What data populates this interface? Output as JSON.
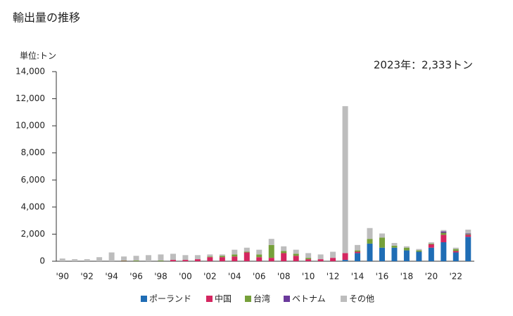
{
  "chart_data": {
    "type": "stacked-bar",
    "title": "輸出量の推移",
    "unit_label": "単位:トン",
    "annotation": "2023年：2,333トン",
    "categories": [
      "'90",
      null,
      "'92",
      null,
      "'94",
      null,
      "'96",
      null,
      "'98",
      null,
      "'00",
      null,
      "'02",
      null,
      "'04",
      null,
      "'06",
      null,
      "'08",
      null,
      "'10",
      null,
      "'12",
      null,
      "'14",
      null,
      "'16",
      null,
      "'18",
      null,
      "'20",
      null,
      "'22",
      null
    ],
    "series": [
      {
        "name": "ポーランド",
        "color": "#1f6db5",
        "values": [
          0,
          0,
          0,
          0,
          0,
          0,
          0,
          0,
          0,
          0,
          0,
          0,
          0,
          0,
          0,
          0,
          0,
          0,
          0,
          0,
          0,
          0,
          0,
          100,
          600,
          1300,
          1000,
          1000,
          800,
          700,
          1000,
          1400,
          650,
          1800
        ]
      },
      {
        "name": "中国",
        "color": "#d42660",
        "values": [
          0,
          0,
          0,
          0,
          0,
          20,
          0,
          0,
          0,
          100,
          100,
          150,
          300,
          300,
          350,
          650,
          300,
          250,
          600,
          400,
          150,
          150,
          250,
          500,
          100,
          0,
          0,
          0,
          0,
          0,
          250,
          550,
          100,
          150
        ]
      },
      {
        "name": "台湾",
        "color": "#76a03a",
        "values": [
          0,
          0,
          0,
          0,
          0,
          30,
          50,
          0,
          50,
          0,
          0,
          0,
          50,
          100,
          150,
          50,
          200,
          950,
          150,
          150,
          100,
          0,
          0,
          0,
          100,
          350,
          750,
          150,
          200,
          100,
          50,
          150,
          150,
          50
        ]
      },
      {
        "name": "ベトナム",
        "color": "#6b3a9c",
        "values": [
          0,
          0,
          0,
          0,
          0,
          0,
          0,
          0,
          0,
          0,
          0,
          0,
          0,
          0,
          0,
          0,
          0,
          0,
          0,
          0,
          0,
          0,
          0,
          0,
          0,
          0,
          0,
          0,
          0,
          0,
          0,
          100,
          0,
          50
        ]
      },
      {
        "name": "その他",
        "color": "#bdbdbd",
        "values": [
          200,
          150,
          150,
          300,
          650,
          300,
          350,
          450,
          450,
          450,
          350,
          300,
          150,
          100,
          350,
          300,
          350,
          450,
          350,
          300,
          350,
          350,
          450,
          10850,
          400,
          800,
          300,
          200,
          100,
          100,
          100,
          100,
          100,
          283
        ]
      }
    ],
    "ylim": [
      0,
      14000
    ],
    "yticks": [
      0,
      {
        "value": 2000,
        "label": "2,000"
      },
      {
        "value": 4000,
        "label": "4,000"
      },
      {
        "value": 6000,
        "label": "6,000"
      },
      {
        "value": 8000,
        "label": "8,000"
      },
      {
        "value": 10000,
        "label": "10,000"
      },
      {
        "value": 12000,
        "label": "12,000"
      },
      {
        "value": 14000,
        "label": "14,000"
      }
    ],
    "legend": "bottom"
  }
}
